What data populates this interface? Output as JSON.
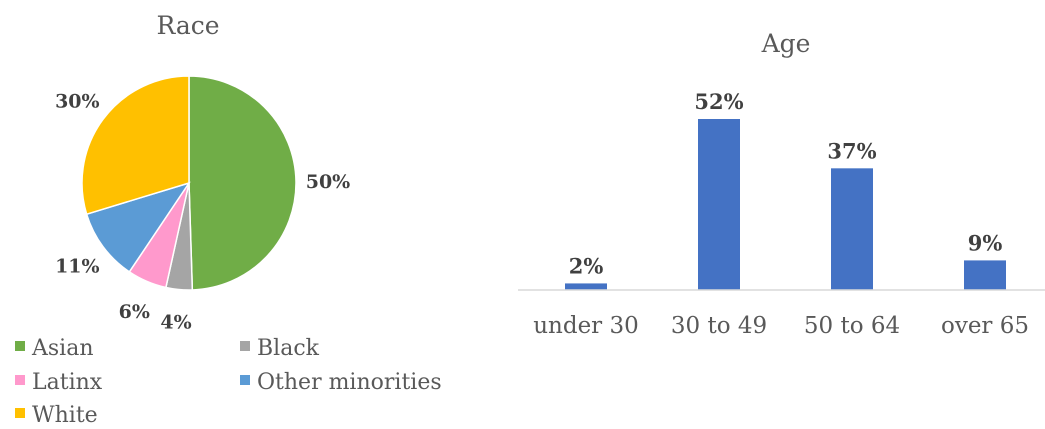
{
  "chart_data": [
    {
      "type": "pie",
      "title": "Race",
      "categories": [
        "Asian",
        "Black",
        "Latinx",
        "Other minorities",
        "White"
      ],
      "values": [
        50,
        4,
        6,
        11,
        30
      ],
      "value_labels": [
        "50%",
        "4%",
        "6%",
        "11%",
        "30%"
      ],
      "colors": [
        "#70AD47",
        "#A5A5A5",
        "#FF99CC",
        "#5B9BD5",
        "#FFC000"
      ],
      "legend": {
        "placement": "bottom",
        "entries": [
          "Asian",
          "Black",
          "Latinx",
          "Other minorities",
          "White"
        ]
      }
    },
    {
      "type": "bar",
      "title": "Age",
      "categories": [
        "under 30",
        "30 to 49",
        "50 to 64",
        "over 65"
      ],
      "values": [
        2,
        52,
        37,
        9
      ],
      "value_labels": [
        "2%",
        "52%",
        "37%",
        "9%"
      ],
      "xlabel": "",
      "ylabel": "",
      "ylim": [
        0,
        60
      ],
      "grid": false,
      "color": "#4472C4"
    }
  ]
}
